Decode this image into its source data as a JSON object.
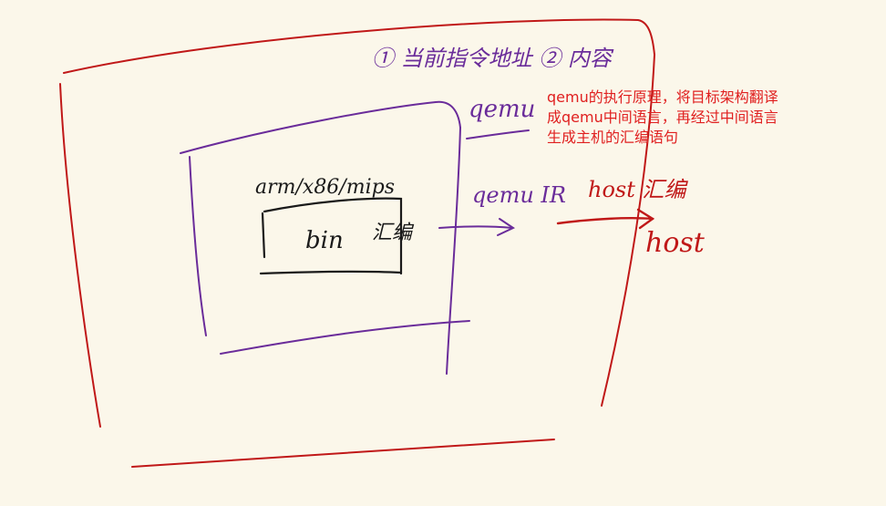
{
  "labels": {
    "top_note": "① 当前指令地址 ② 内容",
    "qemu": "qemu",
    "arch": "arm/x86/mips",
    "bin": "bin",
    "bin_asm": "汇编",
    "qemu_ir": "qemu IR",
    "host_asm": "host 汇编",
    "host": "host"
  },
  "annotation": "qemu的执行原理，将目标架构翻译\n成qemu中间语言，再经过中间语言\n生成主机的汇编语句",
  "colors": {
    "background": "#fbf7ea",
    "red_ink": "#c01818",
    "purple_ink": "#6a2c9a",
    "black_ink": "#1a1a1a",
    "note_text": "#e02020"
  }
}
